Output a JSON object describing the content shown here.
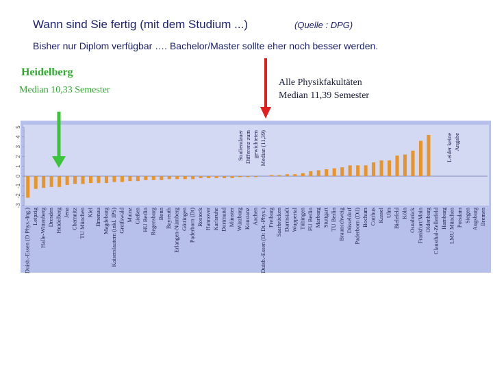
{
  "chart_data": {
    "type": "bar",
    "title": "Wann sind Sie fertig (mit dem Studium ...)",
    "source": "(Quelle : DPG)",
    "subtitle": "Bisher nur Diplom verfügbar …. Bachelor/Master sollte eher noch besser werden.",
    "left_note": [
      "Heidelberg",
      "Median 10,33 Semester"
    ],
    "right_note": [
      "Alle Physikfakultäten",
      "Median 11,39 Semester"
    ],
    "axis_note": [
      "Studiendauer",
      "Differenz zum",
      "gewichteten",
      "Median (11,39)"
    ],
    "missing_note": [
      "Leider keine",
      "Angabe"
    ],
    "categories": [
      "Duisb.-Essen (D Phys.-Ing.)",
      "Leipzig",
      "Halle-Wittenberg",
      "Dresden",
      "Heidelberg",
      "Jena",
      "Chemnitz",
      "TU München",
      "Kiel",
      "Ilmenau",
      "Magdeburg",
      "Kaiserslautern (inkl. IPS)",
      "Greifswald",
      "Mainz",
      "Gießen",
      "HU Berlin",
      "Regensburg",
      "Bonn",
      "Bayreuth",
      "Erlangen-Nürnberg",
      "Göttingen",
      "Paderborn (Dt)",
      "Rostock",
      "Hannover",
      "Karlsruhe",
      "Dortmund",
      "Münster",
      "Würzburg",
      "Konstanz",
      "Aachen",
      "Duisb.-Essen (Dt Dt.-Phys.)",
      "Freiburg",
      "Saarbrücken",
      "Darmstadt",
      "Wuppertal",
      "Tübingen",
      "FU Berlin",
      "Marburg",
      "Stuttgart",
      "TU Berlin",
      "Braunschweig",
      "Düsseldorf",
      "Paderborn (Dil)",
      "Bochum",
      "Cottbus",
      "Kassel",
      "Ulm",
      "Bielefeld",
      "Köln",
      "Osnabrück",
      "Frankfurt/Main",
      "Oldenburg",
      "Clausthal-Zellerfeld",
      "Hamburg",
      "LMU München",
      "Potsdam",
      "Siegen",
      "Augsburg",
      "Bremen"
    ],
    "values": [
      -2.2,
      -1.3,
      -1.2,
      -1.1,
      -1.1,
      -0.9,
      -0.8,
      -0.8,
      -0.7,
      -0.7,
      -0.7,
      -0.6,
      -0.6,
      -0.5,
      -0.5,
      -0.4,
      -0.4,
      -0.4,
      -0.3,
      -0.3,
      -0.3,
      -0.3,
      -0.2,
      -0.2,
      -0.2,
      -0.2,
      -0.2,
      -0.1,
      -0.1,
      -0.1,
      0,
      0.1,
      0.1,
      0.2,
      0.2,
      0.3,
      0.5,
      0.6,
      0.7,
      0.8,
      0.9,
      1.1,
      1.1,
      1.1,
      1.4,
      1.6,
      1.6,
      2.1,
      2.2,
      2.6,
      3.6,
      4.2,
      null,
      null,
      null,
      null,
      null,
      null,
      null
    ],
    "color": "#e8942a",
    "ylim": [
      -3,
      5
    ],
    "yticks": [
      -3,
      -2,
      -1,
      0,
      1,
      2,
      3,
      4,
      5
    ],
    "grid": false
  }
}
